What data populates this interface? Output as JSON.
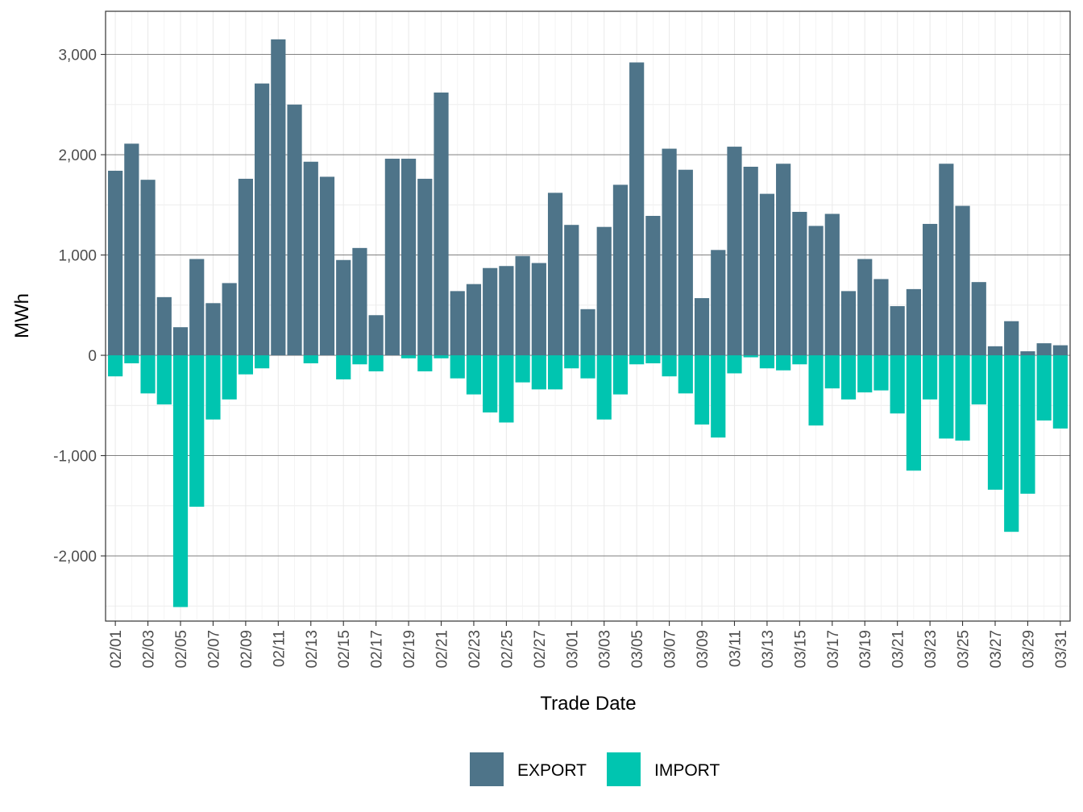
{
  "chart_data": {
    "type": "bar",
    "stacked": true,
    "xlabel": "Trade Date",
    "ylabel": "MWh",
    "ylim": [
      -2650,
      3430
    ],
    "yticks": [
      -2000,
      -1000,
      0,
      1000,
      2000,
      3000
    ],
    "ytick_labels": [
      "-2,000",
      "-1,000",
      "0",
      "1,000",
      "2,000",
      "3,000"
    ],
    "grid": true,
    "legend_position": "bottom",
    "categories": [
      "02/01",
      "02/02",
      "02/03",
      "02/04",
      "02/05",
      "02/06",
      "02/07",
      "02/08",
      "02/09",
      "02/10",
      "02/11",
      "02/12",
      "02/13",
      "02/14",
      "02/15",
      "02/16",
      "02/17",
      "02/18",
      "02/19",
      "02/20",
      "02/21",
      "02/22",
      "02/23",
      "02/24",
      "02/25",
      "02/26",
      "02/27",
      "02/28",
      "03/01",
      "03/02",
      "03/03",
      "03/04",
      "03/05",
      "03/06",
      "03/07",
      "03/08",
      "03/09",
      "03/10",
      "03/11",
      "03/12",
      "03/13",
      "03/14",
      "03/15",
      "03/16",
      "03/17",
      "03/18",
      "03/19",
      "03/20",
      "03/21",
      "03/22",
      "03/23",
      "03/24",
      "03/25",
      "03/26",
      "03/27",
      "03/28",
      "03/29",
      "03/30",
      "03/31"
    ],
    "xtick_labels": [
      "02/01",
      "02/03",
      "02/05",
      "02/07",
      "02/09",
      "02/11",
      "02/13",
      "02/15",
      "02/17",
      "02/19",
      "02/21",
      "02/23",
      "02/25",
      "02/27",
      "03/01",
      "03/03",
      "03/05",
      "03/07",
      "03/09",
      "03/11",
      "03/13",
      "03/15",
      "03/17",
      "03/19",
      "03/21",
      "03/23",
      "03/25",
      "03/27",
      "03/29",
      "03/31"
    ],
    "series": [
      {
        "name": "EXPORT",
        "color": "#4e7489",
        "values": [
          1840,
          2110,
          1750,
          580,
          280,
          960,
          520,
          720,
          1760,
          2710,
          3150,
          2500,
          1930,
          1780,
          950,
          1070,
          400,
          1960,
          1960,
          1760,
          2620,
          640,
          710,
          870,
          890,
          990,
          920,
          1620,
          1300,
          460,
          1280,
          1700,
          2920,
          1390,
          2060,
          1850,
          570,
          1050,
          2080,
          1880,
          1610,
          1910,
          1430,
          1290,
          1410,
          640,
          960,
          760,
          490,
          660,
          1310,
          1910,
          1490,
          730,
          90,
          340,
          40,
          120,
          100
        ]
      },
      {
        "name": "IMPORT",
        "color": "#00c5b0",
        "values": [
          -210,
          -80,
          -380,
          -490,
          -2510,
          -1510,
          -640,
          -440,
          -190,
          -130,
          0,
          0,
          -80,
          0,
          -240,
          -90,
          -160,
          0,
          -30,
          -160,
          -30,
          -230,
          -390,
          -570,
          -670,
          -270,
          -340,
          -340,
          -130,
          -230,
          -640,
          -390,
          -90,
          -80,
          -210,
          -380,
          -690,
          -820,
          -180,
          -20,
          -130,
          -150,
          -90,
          -700,
          -330,
          -440,
          -370,
          -350,
          -580,
          -1150,
          -440,
          -830,
          -850,
          -490,
          -1340,
          -1760,
          -1380,
          -650,
          -730
        ]
      }
    ]
  }
}
